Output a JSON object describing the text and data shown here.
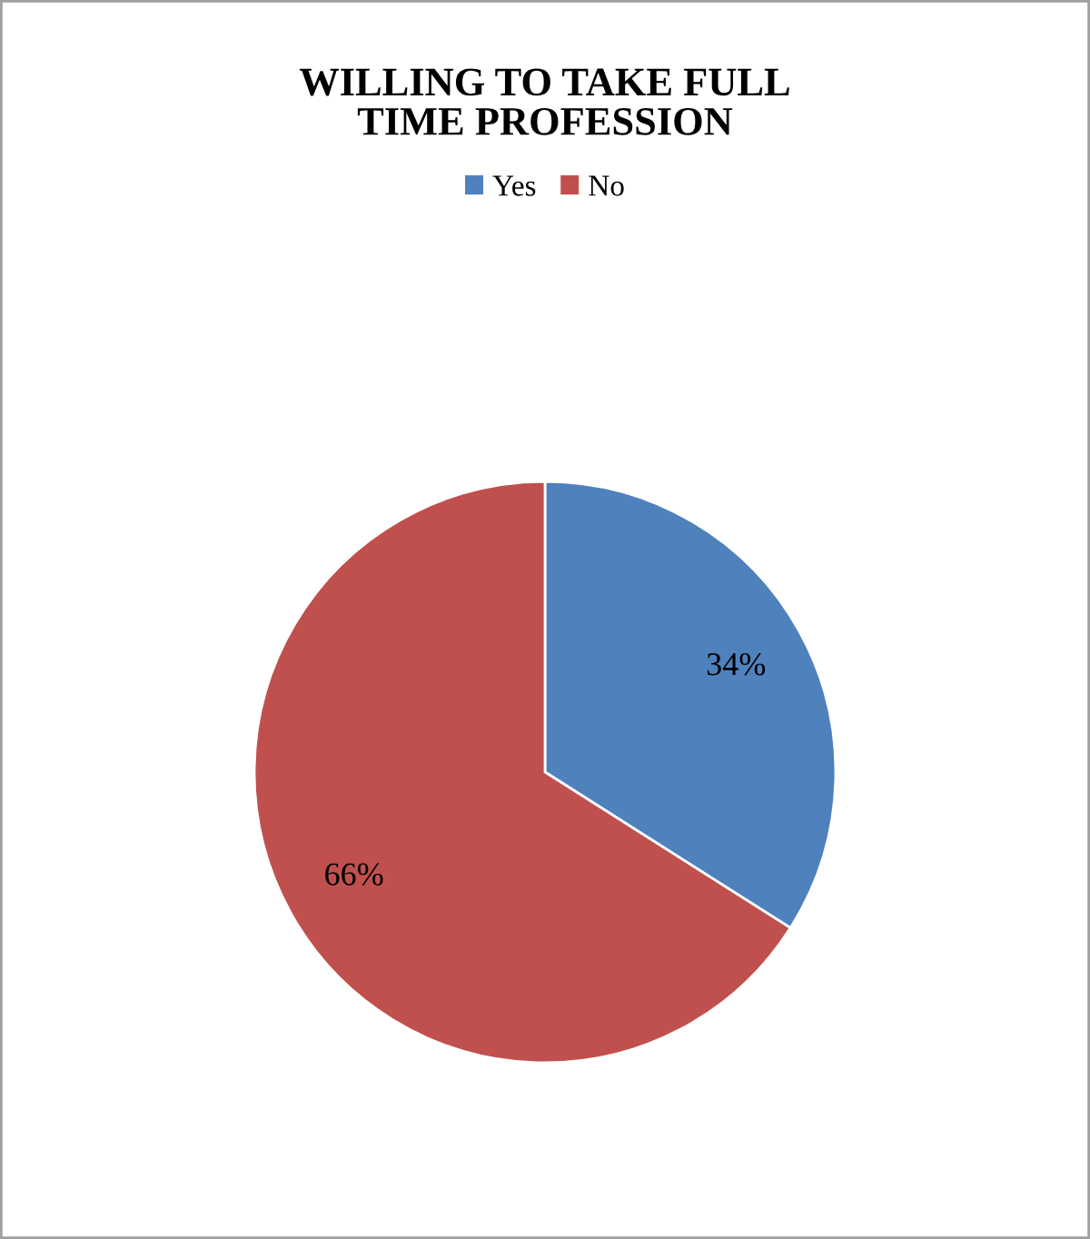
{
  "chart_data": {
    "type": "pie",
    "title": "WILLING TO TAKE FULL\nTIME PROFESSION",
    "categories": [
      "Yes",
      "No"
    ],
    "values": [
      34,
      66
    ],
    "colors": [
      "#4f81bd",
      "#c0504d"
    ],
    "value_labels": [
      "34%",
      "66%"
    ],
    "legend": "top"
  }
}
